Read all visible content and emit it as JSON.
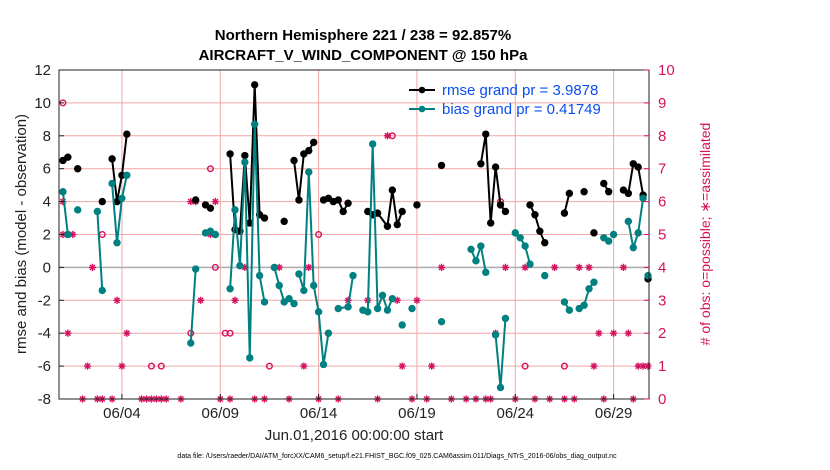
{
  "chart_data": {
    "type": "line",
    "title": "Northern Hemisphere 221 / 238 = 92.857%",
    "subtitle": "AIRCRAFT_V_WIND_COMPONENT @ 150 hPa",
    "xlabel": "Jun.01,2016 00:00:00 start",
    "ylabel": "rmse and bias (model - observation)",
    "ylabel_right": "# of obs: o=possible; ∗=assimilated",
    "footnote": "data file: /Users/raeder/DAI/ATM_forcXX/CAM6_setup/f.e21.FHIST_BGC.f09_025.CAM6assim.011/Diags_NTrS_2016-06/obs_diag_output.nc",
    "xlim": [
      0.8,
      30.8
    ],
    "ylim": [
      -8,
      12
    ],
    "ylim_right": [
      0,
      10
    ],
    "x_tick_labels": [
      "06/04",
      "06/09",
      "06/14",
      "06/19",
      "06/24",
      "06/29"
    ],
    "x_tick_values": [
      4,
      9,
      14,
      19,
      24,
      29
    ],
    "y_ticks": [
      -8,
      -6,
      -4,
      -2,
      0,
      2,
      4,
      6,
      8,
      10,
      12
    ],
    "y_ticks_right": [
      0,
      1,
      2,
      3,
      4,
      5,
      6,
      7,
      8,
      9,
      10
    ],
    "grid": true,
    "legend_position": "top-right",
    "colors": {
      "rmse": "#000000",
      "bias": "#008080",
      "obs": "#d6125f",
      "zero_line": "#b0b0b0",
      "legend_text": "#0a4ff0"
    },
    "series": [
      {
        "name": "rmse grand pr = 3.9878",
        "segments": [
          [
            [
              1.0,
              6.5
            ],
            [
              1.25,
              6.7
            ]
          ],
          [
            [
              1.75,
              6.0
            ]
          ],
          [
            [
              3.0,
              4.0
            ]
          ],
          [
            [
              3.5,
              6.6
            ],
            [
              3.75,
              4.0
            ],
            [
              4.0,
              5.6
            ],
            [
              4.25,
              8.1
            ]
          ],
          [
            [
              7.75,
              4.1
            ]
          ],
          [
            [
              8.25,
              3.8
            ],
            [
              8.5,
              3.6
            ]
          ],
          [
            [
              9.5,
              6.9
            ],
            [
              9.75,
              2.3
            ],
            [
              10.0,
              2.2
            ],
            [
              10.25,
              6.8
            ],
            [
              10.5,
              2.7
            ],
            [
              10.75,
              11.1
            ],
            [
              11.0,
              3.2
            ],
            [
              11.25,
              3.0
            ]
          ],
          [
            [
              12.25,
              2.8
            ]
          ],
          [
            [
              12.75,
              6.5
            ],
            [
              13.0,
              4.1
            ],
            [
              13.25,
              6.9
            ],
            [
              13.5,
              7.1
            ],
            [
              13.75,
              7.6
            ]
          ],
          [
            [
              14.25,
              4.1
            ],
            [
              14.5,
              4.2
            ],
            [
              14.75,
              4.0
            ],
            [
              15.0,
              4.1
            ],
            [
              15.25,
              3.4
            ],
            [
              15.5,
              3.9
            ]
          ],
          [
            [
              16.5,
              3.4
            ],
            [
              16.75,
              3.2
            ],
            [
              17.0,
              3.3
            ],
            [
              17.5,
              2.5
            ],
            [
              17.75,
              4.7
            ],
            [
              18.0,
              2.6
            ],
            [
              18.25,
              3.4
            ]
          ],
          [
            [
              19.0,
              3.8
            ]
          ],
          [
            [
              20.25,
              6.2
            ]
          ],
          [
            [
              22.25,
              6.3
            ],
            [
              22.5,
              8.1
            ],
            [
              22.75,
              2.7
            ],
            [
              23.0,
              6.1
            ],
            [
              23.25,
              3.8
            ],
            [
              23.5,
              3.4
            ]
          ],
          [
            [
              24.75,
              3.8
            ],
            [
              25.0,
              3.2
            ],
            [
              25.25,
              2.2
            ],
            [
              25.5,
              1.5
            ]
          ],
          [
            [
              26.5,
              3.3
            ],
            [
              26.75,
              4.5
            ]
          ],
          [
            [
              27.5,
              4.6
            ]
          ],
          [
            [
              28.0,
              2.1
            ]
          ],
          [
            [
              28.5,
              5.1
            ],
            [
              28.75,
              4.6
            ]
          ],
          [
            [
              29.5,
              4.7
            ],
            [
              29.75,
              4.5
            ],
            [
              30.0,
              6.3
            ],
            [
              30.25,
              6.1
            ],
            [
              30.5,
              4.4
            ]
          ],
          [
            [
              30.75,
              -0.7
            ]
          ]
        ]
      },
      {
        "name": "bias grand pr = 0.41749",
        "segments": [
          [
            [
              1.0,
              4.6
            ],
            [
              1.25,
              2.0
            ]
          ],
          [
            [
              1.75,
              3.5
            ]
          ],
          [
            [
              2.75,
              3.4
            ],
            [
              3.0,
              -1.4
            ]
          ],
          [
            [
              3.5,
              5.1
            ],
            [
              3.75,
              1.5
            ],
            [
              4.0,
              4.2
            ],
            [
              4.25,
              5.6
            ]
          ],
          [
            [
              7.5,
              -4.6
            ],
            [
              7.75,
              -0.1
            ]
          ],
          [
            [
              8.25,
              2.1
            ],
            [
              8.5,
              2.2
            ],
            [
              8.75,
              2.0
            ]
          ],
          [
            [
              9.5,
              -1.3
            ],
            [
              9.75,
              3.5
            ],
            [
              10.0,
              0.1
            ],
            [
              10.25,
              6.4
            ],
            [
              10.5,
              -5.5
            ],
            [
              10.75,
              8.7
            ],
            [
              11.0,
              -0.5
            ],
            [
              11.25,
              -2.1
            ]
          ],
          [
            [
              11.75,
              0.0
            ],
            [
              12.0,
              -1.1
            ],
            [
              12.25,
              -2.1
            ],
            [
              12.5,
              -1.9
            ],
            [
              12.75,
              -2.2
            ]
          ],
          [
            [
              13.0,
              -0.4
            ],
            [
              13.25,
              -1.4
            ],
            [
              13.5,
              5.8
            ],
            [
              13.75,
              -1.1
            ],
            [
              14.0,
              -2.7
            ],
            [
              14.25,
              -5.9
            ],
            [
              14.5,
              -4.0
            ]
          ],
          [
            [
              15.0,
              -2.5
            ],
            [
              15.5,
              -2.4
            ],
            [
              15.75,
              -0.5
            ]
          ],
          [
            [
              16.25,
              -2.6
            ],
            [
              16.5,
              -2.7
            ],
            [
              16.75,
              7.5
            ],
            [
              17.0,
              -2.5
            ],
            [
              17.25,
              -1.7
            ],
            [
              17.5,
              -2.6
            ],
            [
              17.75,
              -1.9
            ]
          ],
          [
            [
              18.25,
              -3.5
            ]
          ],
          [
            [
              18.75,
              -2.5
            ]
          ],
          [
            [
              20.25,
              -3.3
            ]
          ],
          [
            [
              21.75,
              1.1
            ],
            [
              22.0,
              0.4
            ],
            [
              22.25,
              1.3
            ],
            [
              22.5,
              -0.3
            ]
          ],
          [
            [
              23.0,
              -4.1
            ],
            [
              23.25,
              -7.3
            ],
            [
              23.5,
              -3.1
            ]
          ],
          [
            [
              24.0,
              2.1
            ],
            [
              24.25,
              1.8
            ],
            [
              24.5,
              1.3
            ],
            [
              24.75,
              0.2
            ]
          ],
          [
            [
              25.5,
              -0.5
            ]
          ],
          [
            [
              26.5,
              -2.1
            ],
            [
              26.75,
              -2.6
            ]
          ],
          [
            [
              27.25,
              -2.5
            ],
            [
              27.5,
              -2.3
            ],
            [
              27.75,
              -1.3
            ],
            [
              28.0,
              -0.9
            ]
          ],
          [
            [
              28.5,
              1.8
            ],
            [
              28.75,
              1.6
            ]
          ],
          [
            [
              29.0,
              2.0
            ]
          ],
          [
            [
              29.75,
              2.8
            ],
            [
              30.0,
              1.2
            ],
            [
              30.25,
              2.1
            ],
            [
              30.5,
              4.2
            ]
          ],
          [
            [
              30.75,
              -0.5
            ]
          ]
        ]
      }
    ],
    "obs_possible_points": [
      [
        1.0,
        9
      ],
      [
        3.0,
        5
      ],
      [
        5.5,
        1
      ],
      [
        6.0,
        1
      ],
      [
        7.5,
        2
      ],
      [
        8.5,
        7
      ],
      [
        8.75,
        4
      ],
      [
        9.25,
        2
      ],
      [
        9.5,
        2
      ],
      [
        11.5,
        1
      ],
      [
        14.0,
        5
      ],
      [
        17.75,
        8
      ],
      [
        23.25,
        6
      ],
      [
        24.5,
        1
      ],
      [
        26.5,
        1
      ]
    ],
    "obs_assimilated_points": [
      [
        1.0,
        5
      ],
      [
        1.0,
        6
      ],
      [
        1.25,
        2
      ],
      [
        1.5,
        5
      ],
      [
        2.0,
        0
      ],
      [
        2.25,
        1
      ],
      [
        2.5,
        4
      ],
      [
        2.75,
        0
      ],
      [
        3.0,
        0
      ],
      [
        3.5,
        0
      ],
      [
        3.75,
        3
      ],
      [
        4.0,
        1
      ],
      [
        4.25,
        2
      ],
      [
        5.0,
        0
      ],
      [
        5.25,
        0
      ],
      [
        5.5,
        0
      ],
      [
        5.75,
        0
      ],
      [
        6.0,
        0
      ],
      [
        6.25,
        0
      ],
      [
        7.0,
        0
      ],
      [
        7.5,
        6
      ],
      [
        7.75,
        6
      ],
      [
        8.0,
        3
      ],
      [
        8.5,
        5
      ],
      [
        8.75,
        6
      ],
      [
        9.0,
        0
      ],
      [
        9.5,
        0
      ],
      [
        9.75,
        3
      ],
      [
        10.25,
        4
      ],
      [
        10.75,
        0
      ],
      [
        11.25,
        0
      ],
      [
        12.0,
        4
      ],
      [
        12.5,
        0
      ],
      [
        13.25,
        1
      ],
      [
        13.5,
        4
      ],
      [
        14.0,
        0
      ],
      [
        14.5,
        2
      ],
      [
        15.0,
        0
      ],
      [
        15.5,
        3
      ],
      [
        16.5,
        3
      ],
      [
        17.0,
        0
      ],
      [
        17.5,
        8
      ],
      [
        18.0,
        3
      ],
      [
        18.25,
        1
      ],
      [
        18.75,
        0
      ],
      [
        19.0,
        3
      ],
      [
        19.5,
        0
      ],
      [
        19.75,
        1
      ],
      [
        20.25,
        4
      ],
      [
        20.75,
        0
      ],
      [
        21.5,
        0
      ],
      [
        22.0,
        0
      ],
      [
        22.5,
        0
      ],
      [
        22.75,
        0
      ],
      [
        23.0,
        2
      ],
      [
        23.5,
        4
      ],
      [
        24.0,
        0
      ],
      [
        24.5,
        4
      ],
      [
        25.0,
        0
      ],
      [
        25.75,
        0
      ],
      [
        26.0,
        4
      ],
      [
        26.5,
        0
      ],
      [
        27.0,
        0
      ],
      [
        27.25,
        4
      ],
      [
        27.75,
        4
      ],
      [
        28.0,
        1
      ],
      [
        28.25,
        2
      ],
      [
        28.5,
        0
      ],
      [
        29.0,
        2
      ],
      [
        29.5,
        4
      ],
      [
        29.75,
        2
      ],
      [
        30.0,
        0
      ],
      [
        30.25,
        1
      ],
      [
        30.5,
        1
      ],
      [
        30.75,
        1
      ]
    ]
  }
}
